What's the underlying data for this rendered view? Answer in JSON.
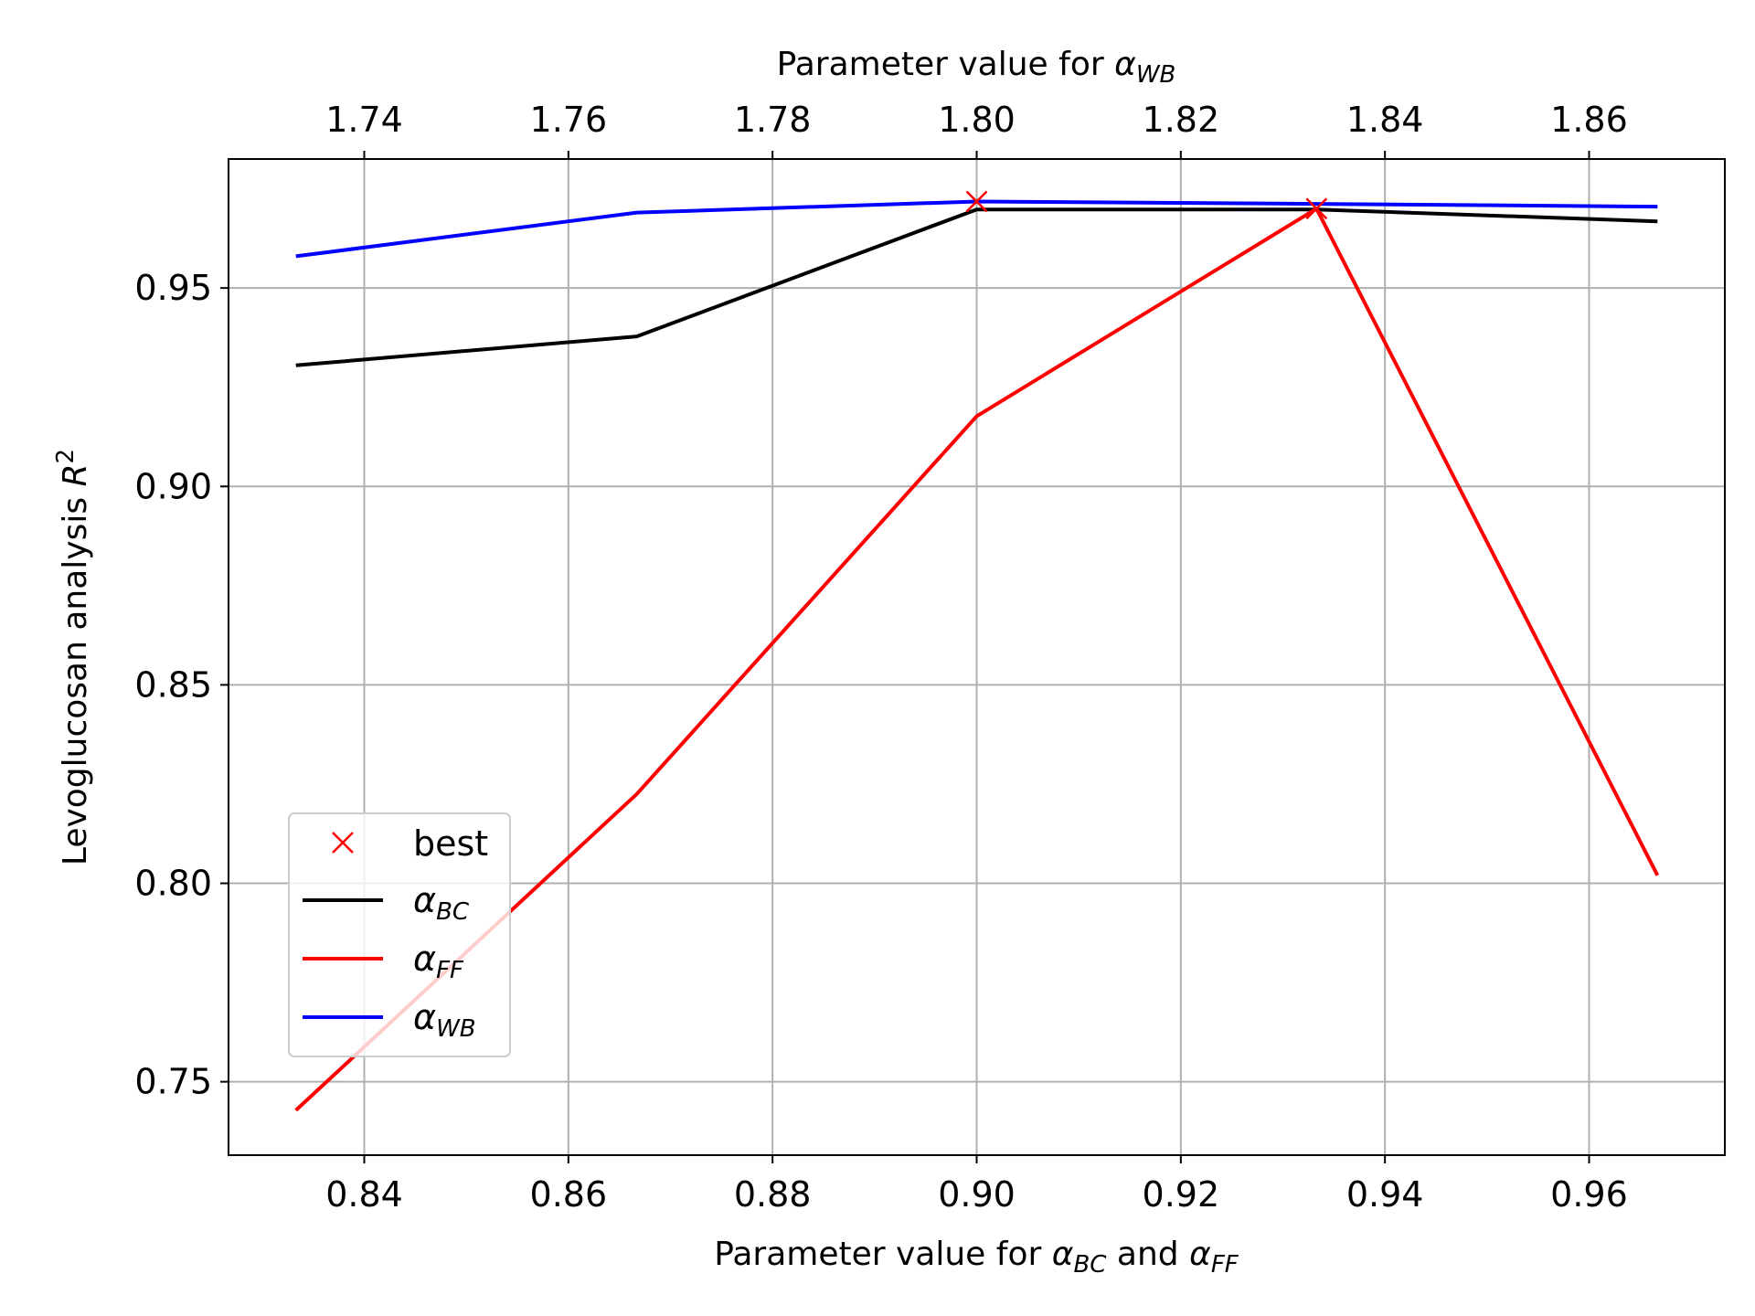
{
  "chart_data": {
    "type": "line",
    "xlabel": {
      "prefix": "Parameter value for ",
      "sym1": "α",
      "sub1": "BC",
      "mid": " and ",
      "sym2": "α",
      "sub2": "FF"
    },
    "x2label": {
      "prefix": "Parameter value for ",
      "sym": "α",
      "sub": "WB"
    },
    "ylabel": {
      "prefix": "Levoglucosan analysis ",
      "sym": "R",
      "sup": "2"
    },
    "xlim": [
      0.8267,
      0.9733
    ],
    "x2lim": [
      1.7267,
      1.8733
    ],
    "ylim": [
      0.7315,
      0.9825
    ],
    "x_ticks": [
      "0.84",
      "0.86",
      "0.88",
      "0.90",
      "0.92",
      "0.94",
      "0.96"
    ],
    "x_tick_values": [
      0.84,
      0.86,
      0.88,
      0.9,
      0.92,
      0.94,
      0.96
    ],
    "x2_ticks": [
      "1.74",
      "1.76",
      "1.78",
      "1.80",
      "1.82",
      "1.84",
      "1.86"
    ],
    "x2_tick_values": [
      1.74,
      1.76,
      1.78,
      1.8,
      1.82,
      1.84,
      1.86
    ],
    "y_ticks": [
      "0.75",
      "0.80",
      "0.85",
      "0.90",
      "0.95"
    ],
    "y_tick_values": [
      0.75,
      0.8,
      0.85,
      0.9,
      0.95
    ],
    "grid": true,
    "legend_position": "lower-left",
    "series": [
      {
        "name": "α",
        "name_sub": "BC",
        "color": "#000000",
        "axis": "bottom",
        "x": [
          0.8333,
          0.8667,
          0.9,
          0.9333,
          0.9667
        ],
        "y": [
          0.9305,
          0.9378,
          0.9698,
          0.9698,
          0.9668
        ]
      },
      {
        "name": "α",
        "name_sub": "FF",
        "color": "#ff0000",
        "axis": "bottom",
        "x": [
          0.8333,
          0.8667,
          0.9,
          0.9333,
          0.9667
        ],
        "y": [
          0.7428,
          0.8225,
          0.9177,
          0.97,
          0.802
        ]
      },
      {
        "name": "α",
        "name_sub": "WB",
        "color": "#0000ff",
        "axis": "top",
        "x": [
          1.7333,
          1.7667,
          1.8,
          1.8333,
          1.8667
        ],
        "y": [
          0.958,
          0.969,
          0.9718,
          0.9712,
          0.9705
        ]
      }
    ],
    "best": {
      "label": "best",
      "color": "#ff0000",
      "points": [
        {
          "x": 0.9,
          "y": 0.9718
        },
        {
          "x": 0.9333,
          "y": 0.97
        }
      ]
    }
  }
}
